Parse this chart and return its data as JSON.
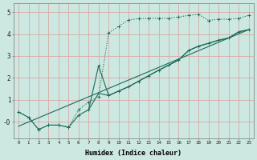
{
  "xlabel": "Humidex (Indice chaleur)",
  "bg_color": "#cce8e0",
  "grid_color": "#d8a8a8",
  "line_color": "#1a6b5a",
  "xlim": [
    -0.5,
    23.5
  ],
  "ylim": [
    -0.75,
    5.4
  ],
  "xticks": [
    0,
    1,
    2,
    3,
    4,
    5,
    6,
    7,
    8,
    9,
    10,
    11,
    12,
    13,
    14,
    15,
    16,
    17,
    18,
    19,
    20,
    21,
    22,
    23
  ],
  "yticks": [
    0,
    1,
    2,
    3,
    4,
    5
  ],
  "ytick_labels": [
    "-0",
    "1",
    "2",
    "3",
    "4",
    "5"
  ],
  "line1_x": [
    0,
    1,
    2,
    3,
    4,
    5,
    6,
    7,
    8,
    9,
    10,
    11,
    12,
    13,
    14,
    15,
    16,
    17,
    18,
    19,
    20,
    21,
    22,
    23
  ],
  "line1_y": [
    0.45,
    0.2,
    -0.35,
    -0.15,
    -0.15,
    -0.25,
    0.55,
    0.9,
    1.15,
    4.05,
    4.35,
    4.65,
    4.7,
    4.72,
    4.72,
    4.72,
    4.78,
    4.85,
    4.9,
    4.62,
    4.68,
    4.68,
    4.72,
    4.85
  ],
  "line2_x": [
    0,
    1,
    2,
    3,
    4,
    5,
    6,
    7,
    8,
    9,
    10,
    11,
    12,
    13,
    14,
    15,
    16,
    17,
    18,
    19,
    20,
    21,
    22,
    23
  ],
  "line2_y": [
    0.45,
    0.2,
    -0.35,
    -0.15,
    -0.15,
    -0.25,
    0.3,
    0.55,
    2.55,
    1.2,
    1.4,
    1.6,
    1.85,
    2.1,
    2.35,
    2.58,
    2.82,
    3.25,
    3.45,
    3.58,
    3.72,
    3.82,
    4.1,
    4.2
  ],
  "line3_x": [
    0,
    23
  ],
  "line3_y": [
    -0.2,
    4.2
  ],
  "line4_x": [
    7,
    8,
    9,
    10,
    11,
    12,
    13,
    14,
    15,
    16,
    17,
    18,
    19,
    20,
    21,
    22,
    23
  ],
  "line4_y": [
    0.55,
    1.3,
    1.2,
    1.4,
    1.6,
    1.85,
    2.1,
    2.35,
    2.58,
    2.82,
    3.25,
    3.45,
    3.58,
    3.72,
    3.82,
    4.1,
    4.2
  ]
}
